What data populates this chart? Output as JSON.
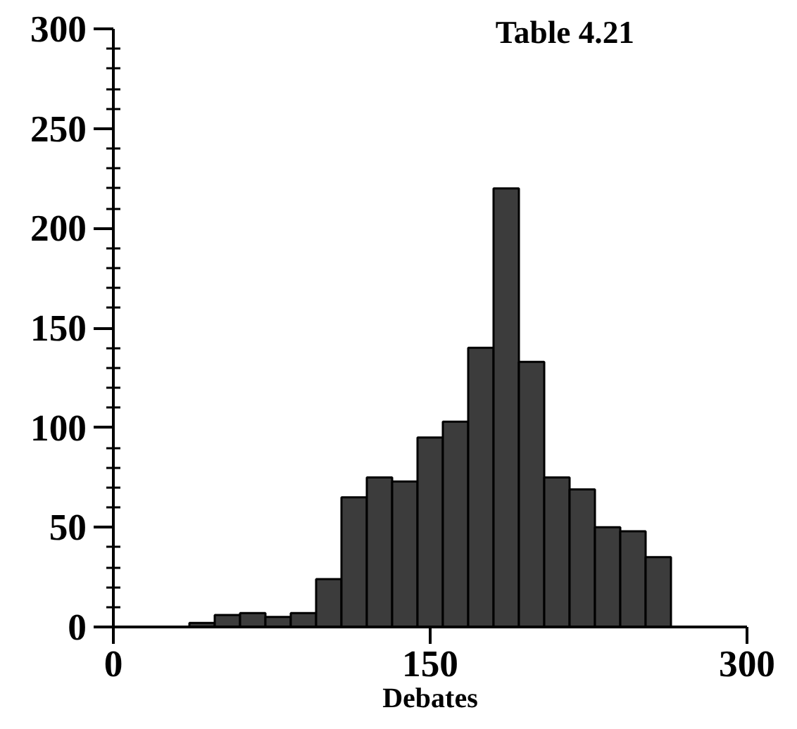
{
  "chart_data": {
    "type": "histogram",
    "title": "Table 4.21",
    "xlabel": "Debates",
    "bins": [
      36,
      48,
      60,
      72,
      84,
      96,
      108,
      120,
      132,
      144,
      156,
      168,
      180,
      192,
      204,
      216,
      228,
      240,
      252,
      264
    ],
    "values": [
      2,
      6,
      7,
      5,
      7,
      24,
      65,
      75,
      73,
      95,
      103,
      140,
      220,
      133,
      75,
      69,
      50,
      48,
      35
    ],
    "color": "#3c3c3c",
    "xlim": [
      0,
      300
    ],
    "xticks": [
      0,
      150,
      300
    ],
    "ylim": [
      0,
      300
    ],
    "yticks": [
      0,
      {
        "value": 10,
        "label": null
      },
      {
        "value": 20,
        "label": null
      },
      {
        "value": 30,
        "label": null
      },
      {
        "value": 40,
        "label": null
      },
      50,
      {
        "value": 60,
        "label": null
      },
      {
        "value": 70,
        "label": null
      },
      {
        "value": 80,
        "label": null
      },
      {
        "value": 90,
        "label": null
      },
      100,
      {
        "value": 110,
        "label": null
      },
      {
        "value": 120,
        "label": null
      },
      {
        "value": 130,
        "label": null
      },
      {
        "value": 140,
        "label": null
      },
      150,
      {
        "value": 160,
        "label": null
      },
      {
        "value": 170,
        "label": null
      },
      {
        "value": 180,
        "label": null
      },
      {
        "value": 190,
        "label": null
      },
      200,
      {
        "value": 210,
        "label": null
      },
      {
        "value": 220,
        "label": null
      },
      {
        "value": 230,
        "label": null
      },
      {
        "value": 240,
        "label": null
      },
      250,
      {
        "value": 260,
        "label": null
      },
      {
        "value": 270,
        "label": null
      },
      {
        "value": 280,
        "label": null
      },
      {
        "value": 290,
        "label": null
      },
      300
    ],
    "grid": false
  }
}
